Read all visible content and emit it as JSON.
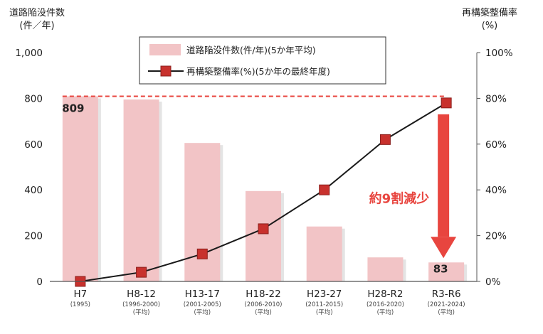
{
  "chart_data": {
    "type": "bar",
    "categories": [
      "H7",
      "H8-12",
      "H13-17",
      "H18-22",
      "H23-27",
      "H28-R2",
      "R3-R6"
    ],
    "category_sublabels": [
      [
        "(1995)"
      ],
      [
        "(1996-2000)",
        "(平均)"
      ],
      [
        "(2001-2005)",
        "(平均)"
      ],
      [
        "(2006-2010)",
        "(平均)"
      ],
      [
        "(2011-2015)",
        "(平均)"
      ],
      [
        "(2016-2020)",
        "(平均)"
      ],
      [
        "(2021-2024)",
        "(平均)"
      ]
    ],
    "series": [
      {
        "name": "道路陥没件数(件/年)(5か年平均)",
        "type": "bar",
        "axis": "left",
        "values": [
          809,
          795,
          605,
          395,
          240,
          105,
          83
        ],
        "color": "#f2c4c6"
      },
      {
        "name": "再構築整備率(%)(5か年の最終年度)",
        "type": "line",
        "axis": "right",
        "values": [
          0,
          4,
          12,
          23,
          40,
          62,
          78
        ],
        "color": "#1a1a1a",
        "marker_color": "#c8312d"
      }
    ],
    "left_axis": {
      "title_lines": [
        "道路陥没件数",
        "(件／年)"
      ],
      "ylim": [
        0,
        1000
      ],
      "ticks": [
        "0",
        "200",
        "400",
        "600",
        "800",
        "1,000"
      ],
      "tick_values": [
        0,
        200,
        400,
        600,
        800,
        1000
      ]
    },
    "right_axis": {
      "title_lines": [
        "再構築整備率",
        "(%)"
      ],
      "ylim": [
        0,
        100
      ],
      "ticks": [
        "0%",
        "20%",
        "40%",
        "60%",
        "80%",
        "100%"
      ],
      "tick_values": [
        0,
        20,
        40,
        60,
        80,
        100
      ]
    },
    "data_labels": [
      {
        "category_index": 0,
        "text": "809"
      },
      {
        "category_index": 6,
        "text": "83"
      }
    ],
    "reference_line": {
      "value": 809,
      "axis": "left",
      "color": "#e8453f",
      "style": "dashed"
    },
    "annotation": {
      "text": "約9割減少",
      "color": "#e8453f"
    },
    "legend": {
      "position": "top-center"
    },
    "grid": false
  }
}
